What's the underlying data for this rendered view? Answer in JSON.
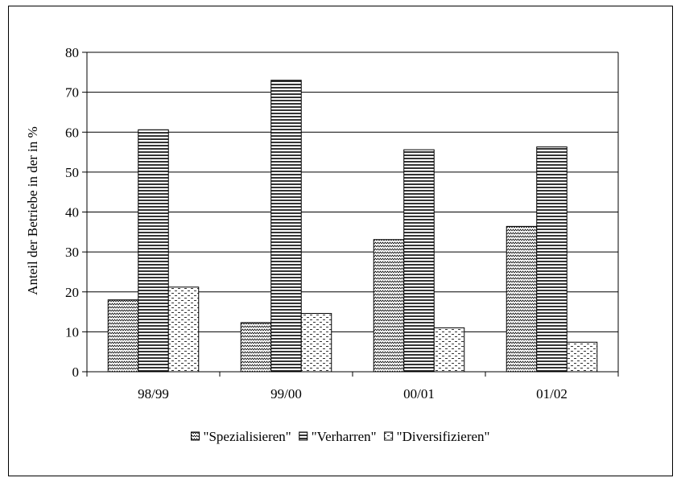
{
  "chart_data": {
    "type": "bar",
    "title": "",
    "xlabel": "",
    "ylabel": "Anteil der Betriebe in der  in %",
    "ylim": [
      0,
      80
    ],
    "yticks": [
      0,
      10,
      20,
      30,
      40,
      50,
      60,
      70,
      80
    ],
    "grid": true,
    "legend_position": "bottom",
    "categories": [
      "98/99",
      "99/00",
      "00/01",
      "01/02"
    ],
    "series": [
      {
        "name": "\"Spezialisieren\"",
        "pattern": "zigzag",
        "values": [
          18,
          12.3,
          33.1,
          36.4
        ]
      },
      {
        "name": "\"Verharren\"",
        "pattern": "horizontal-lines",
        "values": [
          60.6,
          73,
          55.6,
          56.3
        ]
      },
      {
        "name": "\"Diversifizieren\"",
        "pattern": "dashes",
        "values": [
          21.2,
          14.6,
          11,
          7.4
        ]
      }
    ]
  }
}
